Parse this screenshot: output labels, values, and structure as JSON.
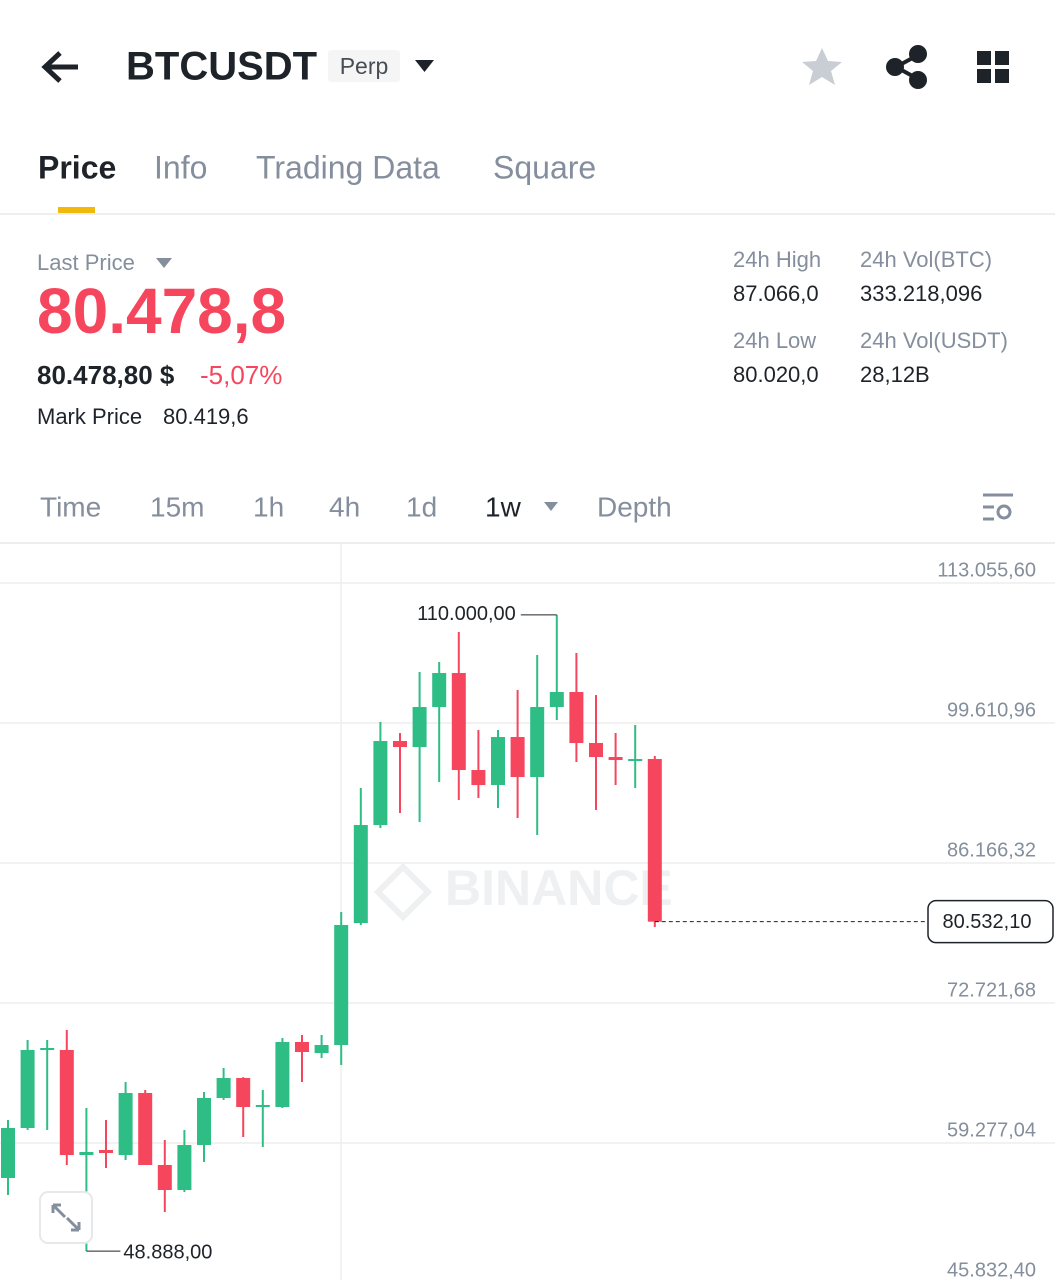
{
  "header": {
    "symbol": "BTCUSDT",
    "badge": "Perp"
  },
  "tabs": [
    "Price",
    "Info",
    "Trading Data",
    "Square"
  ],
  "ticker": {
    "last_price_label": "Last Price",
    "last_price": "80.478,8",
    "fiat_price": "80.478,80 $",
    "change": "-5,07%",
    "mark_price_label": "Mark Price",
    "mark_price": "80.419,6",
    "stats": [
      {
        "label": "24h High",
        "value": "87.066,0"
      },
      {
        "label": "24h Vol(BTC)",
        "value": "333.218,096"
      },
      {
        "label": "24h Low",
        "value": "80.020,0"
      },
      {
        "label": "24h Vol(USDT)",
        "value": "28,12B"
      }
    ]
  },
  "intervals": [
    "Time",
    "15m",
    "1h",
    "4h",
    "1d",
    "1w",
    "Depth"
  ],
  "watermark": "BINANCE",
  "chart_data": {
    "type": "candlestick",
    "up_color": "#2ebd85",
    "down_color": "#f6465d",
    "open": [
      55916,
      60718,
      68209,
      68209,
      58125,
      58605,
      58125,
      64079,
      57165,
      54764,
      59085,
      63599,
      65520,
      62735,
      62735,
      68977,
      67920,
      68689,
      80405,
      89816,
      97883,
      97307,
      101148,
      104413,
      95098,
      93657,
      98267,
      94426,
      101148,
      102588,
      97691,
      96346,
      96058,
      96154
    ],
    "high": [
      61486,
      69169,
      69169,
      70129,
      62639,
      61486,
      65136,
      64367,
      59566,
      60526,
      64175,
      66480,
      65600,
      64367,
      69361,
      69649,
      69649,
      81461,
      93369,
      99707,
      98651,
      104509,
      105469,
      108350,
      98939,
      98939,
      102780,
      106142,
      110000,
      106334,
      102300,
      98651,
      99419,
      96442
    ],
    "low": [
      54284,
      60526,
      60526,
      57165,
      48888,
      56877,
      57645,
      57165,
      52651,
      54572,
      57453,
      63407,
      59854,
      58893,
      62639,
      65136,
      67440,
      66768,
      80213,
      89528,
      90968,
      90104,
      93945,
      92217,
      92409,
      91449,
      90488,
      88856,
      99899,
      95866,
      91257,
      93657,
      93369,
      80020
    ],
    "close": [
      60718,
      68209,
      68401,
      58125,
      58413,
      58317,
      64079,
      57165,
      54764,
      59085,
      63599,
      65520,
      62735,
      62927,
      68977,
      68017,
      68689,
      80213,
      89816,
      97883,
      97307,
      101148,
      104413,
      95098,
      93657,
      98267,
      94426,
      101148,
      102588,
      97691,
      96346,
      96058,
      96154,
      80532.1
    ],
    "ylim": [
      46120,
      116900
    ],
    "yticks": [
      {
        "value": 113055.6,
        "label": "113.055,60"
      },
      {
        "value": 99610.96,
        "label": "99.610,96"
      },
      {
        "value": 86166.32,
        "label": "86.166,32"
      },
      {
        "value": 72721.68,
        "label": "72.721,68"
      },
      {
        "value": 59277.04,
        "label": "59.277,04"
      },
      {
        "value": 45832.4,
        "label": "45.832,40"
      }
    ],
    "grid": true,
    "max_label": {
      "value": 110000,
      "label": "110.000,00"
    },
    "min_label": {
      "value": 48888,
      "label": "48.888,00"
    },
    "last_label": {
      "value": 80532.1,
      "label": "80.532,10"
    }
  }
}
